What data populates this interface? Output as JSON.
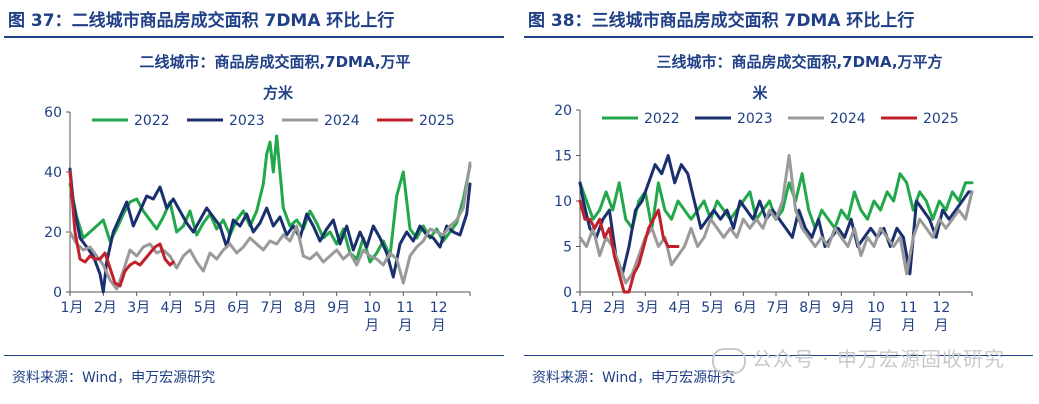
{
  "left": {
    "fig_title": "图 37：二线城市商品房成交面积 7DMA 环比上行",
    "chart_title_1": "二线城市：商品房成交面积,7DMA,万平",
    "chart_title_2": "方米",
    "source": "资料来源：Wind，申万宏源研究"
  },
  "right": {
    "fig_title": "图 38：三线城市商品房成交面积 7DMA 环比上行",
    "chart_title_1": "三线城市：商品房成交面积,7DMA,万平方",
    "chart_title_2": "米",
    "source": "资料来源：Wind，申万宏源研究"
  },
  "watermark": "公众号 · 申万宏源固收研究",
  "colors": {
    "2022": "#22a84a",
    "2023": "#1a2f6e",
    "2024": "#9a9a9a",
    "2025": "#c0202a",
    "title": "#1f3f86"
  },
  "chart_data": [
    {
      "type": "line",
      "x_categories": [
        "1月",
        "2月",
        "3月",
        "4月",
        "5月",
        "6月",
        "7月",
        "8月",
        "9月",
        "10月",
        "11月",
        "12月"
      ],
      "ylim": [
        0,
        60
      ],
      "yticks": [
        "0",
        "20",
        "40",
        "60"
      ],
      "legend": "top",
      "series": [
        {
          "name": "2022",
          "color": "#22a84a",
          "x": [
            0,
            0.2,
            0.4,
            0.6,
            0.8,
            1.0,
            1.2,
            1.4,
            1.6,
            1.8,
            2.0,
            2.2,
            2.4,
            2.6,
            2.8,
            3.0,
            3.2,
            3.4,
            3.6,
            3.8,
            4.0,
            4.2,
            4.4,
            4.6,
            4.8,
            5.0,
            5.2,
            5.4,
            5.6,
            5.8,
            5.9,
            6.0,
            6.1,
            6.2,
            6.4,
            6.6,
            6.8,
            7.0,
            7.2,
            7.4,
            7.6,
            7.8,
            8.0,
            8.2,
            8.4,
            8.6,
            8.8,
            9.0,
            9.2,
            9.4,
            9.6,
            9.8,
            10.0,
            10.2,
            10.4,
            10.6,
            10.8,
            11.0,
            11.2,
            11.4,
            11.6,
            11.8,
            12.0
          ],
          "values": [
            36,
            25,
            18,
            20,
            22,
            24,
            17,
            21,
            26,
            30,
            31,
            27,
            24,
            21,
            25,
            30,
            20,
            22,
            27,
            19,
            23,
            26,
            21,
            24,
            19,
            24,
            27,
            22,
            27,
            36,
            46,
            50,
            40,
            52,
            28,
            22,
            24,
            21,
            27,
            23,
            18,
            20,
            16,
            21,
            13,
            11,
            18,
            10,
            13,
            17,
            12,
            32,
            40,
            21,
            18,
            22,
            18,
            21,
            17,
            20,
            23,
            31,
            42
          ]
        },
        {
          "name": "2023",
          "color": "#1a2f6e",
          "x": [
            0,
            0.1,
            0.3,
            0.5,
            0.7,
            0.9,
            1.0,
            1.1,
            1.3,
            1.5,
            1.7,
            1.9,
            2.1,
            2.3,
            2.5,
            2.7,
            2.9,
            3.1,
            3.3,
            3.5,
            3.7,
            3.9,
            4.1,
            4.3,
            4.5,
            4.7,
            4.9,
            5.1,
            5.3,
            5.5,
            5.7,
            5.9,
            6.1,
            6.3,
            6.5,
            6.7,
            6.9,
            7.1,
            7.3,
            7.5,
            7.7,
            7.9,
            8.1,
            8.3,
            8.5,
            8.7,
            8.9,
            9.1,
            9.3,
            9.5,
            9.7,
            9.9,
            10.1,
            10.3,
            10.5,
            10.7,
            10.9,
            11.1,
            11.3,
            11.5,
            11.7,
            11.9,
            12.0
          ],
          "values": [
            41,
            30,
            18,
            15,
            12,
            6,
            0,
            10,
            20,
            25,
            30,
            22,
            27,
            32,
            31,
            35,
            28,
            31,
            27,
            23,
            20,
            24,
            28,
            25,
            22,
            15,
            24,
            22,
            26,
            20,
            23,
            28,
            22,
            25,
            19,
            22,
            18,
            26,
            22,
            17,
            21,
            24,
            16,
            22,
            14,
            20,
            15,
            22,
            18,
            13,
            5,
            16,
            20,
            17,
            22,
            19,
            18,
            15,
            22,
            20,
            19,
            26,
            36
          ]
        },
        {
          "name": "2024",
          "color": "#9a9a9a",
          "x": [
            0,
            0.2,
            0.4,
            0.6,
            0.8,
            1.0,
            1.2,
            1.4,
            1.6,
            1.8,
            2.0,
            2.2,
            2.4,
            2.6,
            2.8,
            3.0,
            3.2,
            3.4,
            3.6,
            3.8,
            4.0,
            4.2,
            4.4,
            4.6,
            4.8,
            5.0,
            5.2,
            5.4,
            5.6,
            5.8,
            6.0,
            6.2,
            6.4,
            6.6,
            6.8,
            7.0,
            7.2,
            7.4,
            7.6,
            7.8,
            8.0,
            8.2,
            8.4,
            8.6,
            8.8,
            9.0,
            9.2,
            9.4,
            9.6,
            9.8,
            10.0,
            10.2,
            10.4,
            10.6,
            10.8,
            11.0,
            11.2,
            11.4,
            11.6,
            11.8,
            12.0
          ],
          "values": [
            20,
            16,
            14,
            15,
            12,
            9,
            4,
            1,
            7,
            14,
            12,
            15,
            16,
            13,
            14,
            12,
            8,
            12,
            14,
            10,
            7,
            13,
            11,
            14,
            16,
            13,
            15,
            18,
            16,
            14,
            17,
            16,
            19,
            17,
            22,
            12,
            11,
            13,
            10,
            12,
            14,
            11,
            13,
            9,
            14,
            12,
            11,
            9,
            13,
            11,
            3,
            12,
            15,
            17,
            21,
            20,
            19,
            22,
            24,
            28,
            43
          ]
        },
        {
          "name": "2025",
          "color": "#c0202a",
          "x": [
            0,
            0.15,
            0.3,
            0.45,
            0.6,
            0.75,
            0.9,
            1.05,
            1.2,
            1.35,
            1.5,
            1.65,
            1.8,
            1.95,
            2.1,
            2.25,
            2.4,
            2.55,
            2.7,
            2.85,
            3.0,
            3.1
          ],
          "values": [
            40,
            20,
            11,
            10,
            12,
            11,
            11,
            13,
            8,
            3,
            2,
            7,
            9,
            10,
            9,
            11,
            13,
            15,
            16,
            11,
            9,
            10
          ]
        }
      ]
    },
    {
      "type": "line",
      "x_categories": [
        "1月",
        "2月",
        "3月",
        "4月",
        "5月",
        "6月",
        "7月",
        "8月",
        "9月",
        "10月",
        "11月",
        "12月"
      ],
      "ylim": [
        0,
        20
      ],
      "yticks": [
        "0",
        "5",
        "10",
        "15",
        "20"
      ],
      "legend": "top",
      "series": [
        {
          "name": "2022",
          "color": "#22a84a",
          "x": [
            0,
            0.2,
            0.4,
            0.6,
            0.8,
            1.0,
            1.2,
            1.4,
            1.6,
            1.8,
            2.0,
            2.2,
            2.4,
            2.6,
            2.8,
            3.0,
            3.2,
            3.4,
            3.6,
            3.8,
            4.0,
            4.2,
            4.4,
            4.6,
            4.8,
            5.0,
            5.2,
            5.4,
            5.6,
            5.8,
            6.0,
            6.2,
            6.4,
            6.6,
            6.8,
            7.0,
            7.2,
            7.4,
            7.6,
            7.8,
            8.0,
            8.2,
            8.4,
            8.6,
            8.8,
            9.0,
            9.2,
            9.4,
            9.6,
            9.8,
            10.0,
            10.2,
            10.4,
            10.6,
            10.8,
            11.0,
            11.2,
            11.4,
            11.6,
            11.8,
            12.0
          ],
          "values": [
            12,
            10,
            8,
            9,
            11,
            9,
            12,
            8,
            7,
            10,
            11,
            7,
            12,
            9,
            8,
            10,
            9,
            8,
            9,
            10,
            8,
            10,
            9,
            8,
            9,
            10,
            11,
            8,
            9,
            10,
            8,
            9,
            12,
            10,
            13,
            9,
            7,
            9,
            8,
            7,
            9,
            8,
            11,
            9,
            8,
            10,
            9,
            11,
            10,
            13,
            12,
            9,
            11,
            10,
            8,
            10,
            9,
            11,
            10,
            12,
            12
          ]
        },
        {
          "name": "2023",
          "color": "#1a2f6e",
          "x": [
            0,
            0.1,
            0.3,
            0.5,
            0.7,
            0.9,
            1.1,
            1.3,
            1.5,
            1.7,
            1.9,
            2.1,
            2.3,
            2.5,
            2.7,
            2.9,
            3.1,
            3.3,
            3.5,
            3.7,
            3.9,
            4.1,
            4.3,
            4.5,
            4.7,
            4.9,
            5.1,
            5.3,
            5.5,
            5.7,
            5.9,
            6.1,
            6.3,
            6.5,
            6.7,
            6.9,
            7.1,
            7.3,
            7.5,
            7.7,
            7.9,
            8.1,
            8.3,
            8.5,
            8.7,
            8.9,
            9.1,
            9.3,
            9.5,
            9.7,
            9.9,
            10.1,
            10.3,
            10.5,
            10.7,
            10.9,
            11.1,
            11.3,
            11.5,
            11.7,
            11.9,
            12.0
          ],
          "values": [
            12,
            10,
            7,
            6,
            8,
            9,
            4,
            2,
            5,
            9,
            10,
            12,
            14,
            13,
            15,
            12,
            14,
            13,
            10,
            7,
            8,
            9,
            8,
            9,
            7,
            10,
            9,
            8,
            10,
            8,
            9,
            8,
            7,
            6,
            9,
            7,
            6,
            8,
            5,
            6,
            7,
            6,
            8,
            5,
            6,
            7,
            6,
            7,
            5,
            7,
            6,
            2,
            10,
            9,
            8,
            6,
            9,
            8,
            9,
            10,
            11,
            11
          ]
        },
        {
          "name": "2024",
          "color": "#9a9a9a",
          "x": [
            0,
            0.2,
            0.4,
            0.6,
            0.8,
            1.0,
            1.2,
            1.4,
            1.6,
            1.8,
            2.0,
            2.2,
            2.4,
            2.6,
            2.8,
            3.0,
            3.2,
            3.4,
            3.6,
            3.8,
            4.0,
            4.2,
            4.4,
            4.6,
            4.8,
            5.0,
            5.2,
            5.4,
            5.6,
            5.8,
            6.0,
            6.2,
            6.4,
            6.6,
            6.8,
            7.0,
            7.2,
            7.4,
            7.6,
            7.8,
            8.0,
            8.2,
            8.4,
            8.6,
            8.8,
            9.0,
            9.2,
            9.4,
            9.6,
            9.8,
            10.0,
            10.2,
            10.4,
            10.6,
            10.8,
            11.0,
            11.2,
            11.4,
            11.6,
            11.8,
            12.0
          ],
          "values": [
            6,
            5,
            7,
            4,
            6,
            5,
            3,
            1,
            2,
            4,
            6,
            7,
            5,
            6,
            3,
            4,
            5,
            7,
            5,
            6,
            8,
            7,
            6,
            7,
            6,
            8,
            7,
            8,
            7,
            9,
            8,
            10,
            15,
            9,
            7,
            6,
            5,
            6,
            5,
            7,
            6,
            5,
            7,
            4,
            6,
            5,
            7,
            6,
            5,
            6,
            2,
            6,
            8,
            7,
            6,
            8,
            7,
            8,
            9,
            8,
            11
          ]
        },
        {
          "name": "2025",
          "color": "#c0202a",
          "x": [
            0,
            0.15,
            0.3,
            0.45,
            0.6,
            0.75,
            0.9,
            1.05,
            1.2,
            1.35,
            1.5,
            1.65,
            1.8,
            1.95,
            2.1,
            2.25,
            2.4,
            2.55,
            2.7,
            2.85,
            3.0
          ],
          "values": [
            10,
            8,
            8,
            7,
            8,
            6,
            7,
            4,
            2,
            0,
            0,
            2,
            3,
            5,
            7,
            8,
            9,
            6,
            5,
            5,
            5
          ]
        }
      ]
    }
  ]
}
